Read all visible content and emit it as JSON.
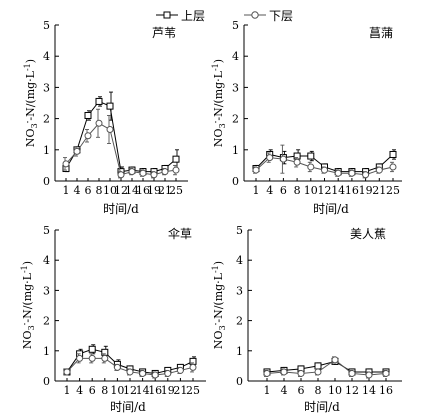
{
  "legend": {
    "upper": "上层",
    "lower": "下层"
  },
  "colors": {
    "ink": "#000000",
    "upper_fill": "#ffffff",
    "lower_fill": "#ffffff",
    "lower_stroke": "#555555"
  },
  "chart_data": [
    {
      "type": "line",
      "title": "芦苇",
      "xlabel": "时间/d",
      "ylabel": "NO3--N/(mg·L-1)",
      "categories": [
        "1",
        "4",
        "6",
        "8",
        "10",
        "12",
        "14",
        "16",
        "19",
        "21",
        "25"
      ],
      "ylim": [
        0,
        5
      ],
      "yticks": [
        0,
        1,
        2,
        3,
        4,
        5
      ],
      "series": [
        {
          "name": "上层",
          "marker": "square",
          "values": [
            0.4,
            1.0,
            2.1,
            2.55,
            2.4,
            0.3,
            0.35,
            0.3,
            0.3,
            0.4,
            0.7
          ],
          "errors": [
            0.1,
            0.1,
            0.15,
            0.15,
            0.45,
            0.15,
            0.1,
            0.1,
            0.1,
            0.1,
            0.3
          ]
        },
        {
          "name": "下层",
          "marker": "circle",
          "values": [
            0.55,
            0.95,
            1.45,
            1.85,
            1.65,
            0.2,
            0.3,
            0.25,
            0.2,
            0.3,
            0.35
          ],
          "errors": [
            0.2,
            0.15,
            0.2,
            0.45,
            0.45,
            0.1,
            0.1,
            0.1,
            0.1,
            0.1,
            0.15
          ]
        }
      ]
    },
    {
      "type": "line",
      "title": "菖蒲",
      "xlabel": "时间/d",
      "ylabel": "NO3--N/(mg·L-1)",
      "categories": [
        "1",
        "4",
        "6",
        "8",
        "10",
        "12",
        "14",
        "16",
        "19",
        "21",
        "25"
      ],
      "ylim": [
        0,
        5
      ],
      "yticks": [
        0,
        1,
        2,
        3,
        4,
        5
      ],
      "series": [
        {
          "name": "上层",
          "marker": "square",
          "values": [
            0.4,
            0.85,
            0.75,
            0.8,
            0.8,
            0.45,
            0.3,
            0.3,
            0.3,
            0.45,
            0.85
          ],
          "errors": [
            0.1,
            0.15,
            0.2,
            0.2,
            0.15,
            0.1,
            0.1,
            0.1,
            0.1,
            0.1,
            0.15
          ]
        },
        {
          "name": "下层",
          "marker": "circle",
          "values": [
            0.35,
            0.75,
            0.7,
            0.6,
            0.45,
            0.35,
            0.25,
            0.25,
            0.2,
            0.35,
            0.45
          ],
          "errors": [
            0.1,
            0.15,
            0.45,
            0.15,
            0.15,
            0.1,
            0.1,
            0.1,
            0.1,
            0.1,
            0.15
          ]
        }
      ]
    },
    {
      "type": "line",
      "title": "伞草",
      "xlabel": "时间/d",
      "ylabel": "NO3--N/(mg·L-1)",
      "categories": [
        "1",
        "4",
        "6",
        "8",
        "10",
        "12",
        "14",
        "16",
        "19",
        "21",
        "25"
      ],
      "ylim": [
        0,
        5
      ],
      "yticks": [
        0,
        1,
        2,
        3,
        4,
        5
      ],
      "series": [
        {
          "name": "上层",
          "marker": "square",
          "values": [
            0.3,
            0.9,
            1.05,
            0.95,
            0.55,
            0.4,
            0.3,
            0.25,
            0.35,
            0.45,
            0.65
          ],
          "errors": [
            0.1,
            0.15,
            0.15,
            0.2,
            0.15,
            0.1,
            0.1,
            0.1,
            0.1,
            0.1,
            0.15
          ]
        },
        {
          "name": "下层",
          "marker": "circle",
          "values": [
            0.3,
            0.75,
            0.75,
            0.75,
            0.45,
            0.3,
            0.25,
            0.2,
            0.25,
            0.35,
            0.45
          ],
          "errors": [
            0.1,
            0.15,
            0.15,
            0.15,
            0.1,
            0.1,
            0.1,
            0.1,
            0.1,
            0.1,
            0.15
          ]
        }
      ]
    },
    {
      "type": "line",
      "title": "美人蕉",
      "xlabel": "时间/d",
      "ylabel": "NO3--N/(mg·L-1)",
      "categories": [
        "1",
        "4",
        "6",
        "8",
        "10",
        "12",
        "14",
        "16"
      ],
      "ylim": [
        0,
        5
      ],
      "yticks": [
        0,
        1,
        2,
        3,
        4,
        5
      ],
      "series": [
        {
          "name": "上层",
          "marker": "square",
          "values": [
            0.3,
            0.35,
            0.4,
            0.5,
            0.65,
            0.3,
            0.3,
            0.3
          ],
          "errors": [
            0.1,
            0.1,
            0.1,
            0.1,
            0.1,
            0.1,
            0.1,
            0.1
          ]
        },
        {
          "name": "下层",
          "marker": "circle",
          "values": [
            0.25,
            0.3,
            0.25,
            0.3,
            0.7,
            0.25,
            0.2,
            0.25
          ],
          "errors": [
            0.1,
            0.1,
            0.1,
            0.1,
            0.1,
            0.1,
            0.1,
            0.1
          ]
        }
      ]
    }
  ]
}
